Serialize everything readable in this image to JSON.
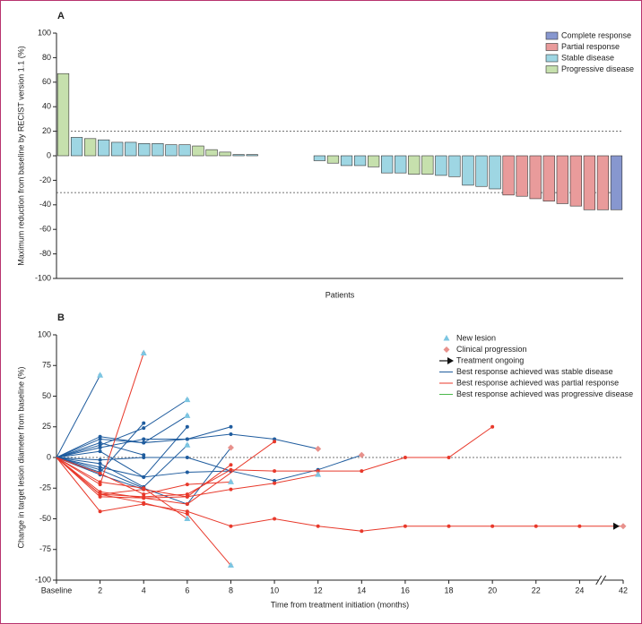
{
  "chart_data": [
    {
      "type": "bar",
      "label": "A",
      "ylabel": "Maximum reduction from baseline by RECIST version 1.1 (%)",
      "xlabel": "Patients",
      "ylim": [
        -100,
        100
      ],
      "yticks": [
        -100,
        -80,
        -60,
        -40,
        -20,
        0,
        20,
        40,
        60,
        80,
        100
      ],
      "reference_lines": [
        20,
        -30
      ],
      "legend": "upper right",
      "series": [
        {
          "name": "Complete response",
          "color": "#8797cf",
          "values": [
            null,
            null,
            null,
            null,
            null,
            null,
            null,
            null,
            null,
            null,
            null,
            null,
            null,
            null,
            null,
            null,
            null,
            null,
            null,
            null,
            null,
            null,
            null,
            null,
            null,
            null,
            null,
            null,
            null,
            null,
            null,
            null,
            null,
            null,
            null,
            null,
            null,
            null,
            null,
            null,
            null,
            -44
          ]
        },
        {
          "name": "Partial response",
          "color": "#e99b9b",
          "values": [
            null,
            null,
            null,
            null,
            null,
            null,
            null,
            null,
            null,
            null,
            null,
            null,
            null,
            null,
            null,
            null,
            null,
            null,
            null,
            null,
            null,
            null,
            null,
            null,
            null,
            null,
            null,
            null,
            null,
            null,
            null,
            null,
            null,
            -32,
            -33,
            -35,
            -37,
            -39,
            -41,
            -44,
            -44,
            null
          ]
        },
        {
          "name": "Stable disease",
          "color": "#9ed6e3",
          "values": [
            null,
            15,
            null,
            13,
            11,
            11,
            10,
            10,
            9,
            9,
            null,
            null,
            null,
            1,
            1,
            0,
            0,
            0,
            0,
            -4,
            null,
            -8,
            -8,
            null,
            -14,
            -14,
            null,
            null,
            -16,
            -17,
            -24,
            -25,
            -27,
            null,
            null,
            null,
            null,
            null,
            null,
            null,
            null,
            null
          ]
        },
        {
          "name": "Progressive disease",
          "color": "#c6e0ad",
          "values": [
            67,
            null,
            14,
            null,
            null,
            null,
            null,
            null,
            null,
            null,
            8,
            5,
            3,
            null,
            null,
            null,
            null,
            null,
            null,
            null,
            -6,
            null,
            null,
            -9,
            null,
            null,
            -15,
            -15,
            null,
            null,
            null,
            null,
            null,
            null,
            null,
            null,
            null,
            null,
            null,
            null,
            null,
            null
          ]
        }
      ]
    },
    {
      "type": "line",
      "label": "B",
      "ylabel": "Change in target lesion diameter from baseline (%)",
      "xlabel": "Time from treatment initiation (months)",
      "xlim": [
        0,
        42
      ],
      "xbreak": [
        25,
        41
      ],
      "xticks": [
        {
          "value": 0,
          "label": "Baseline"
        },
        2,
        4,
        6,
        8,
        10,
        12,
        14,
        16,
        18,
        20,
        22,
        24,
        42
      ],
      "ylim": [
        -100,
        100
      ],
      "yticks": [
        -100,
        -75,
        -50,
        -25,
        0,
        25,
        50,
        75,
        100
      ],
      "reference_lines": [
        0
      ],
      "legend": "upper right",
      "markers": [
        {
          "name": "New lesion",
          "shape": "triangle",
          "color": "#7cc6e2",
          "x": [
            2,
            4,
            6,
            6,
            6,
            6,
            8,
            8,
            12
          ],
          "y": [
            67,
            85,
            47,
            34,
            10,
            -50,
            -20,
            -88,
            -14
          ]
        },
        {
          "name": "Clinical progression",
          "shape": "diamond",
          "color": "#e8918c",
          "x": [
            8,
            12,
            14,
            42
          ],
          "y": [
            8,
            7,
            2,
            -56
          ]
        },
        {
          "name": "Treatment ongoing",
          "shape": "arrow",
          "color": "#111111",
          "x": [
            42
          ],
          "y": [
            -56
          ]
        }
      ],
      "series": [
        {
          "name": "Best response achieved was stable disease",
          "color": "#1f5c9e",
          "lines": [
            {
              "x": [
                0,
                2
              ],
              "values": [
                0,
                67
              ]
            },
            {
              "x": [
                0,
                2,
                4
              ],
              "values": [
                0,
                -12,
                28
              ]
            },
            {
              "x": [
                0,
                2,
                4,
                6
              ],
              "values": [
                0,
                15,
                12,
                34
              ]
            },
            {
              "x": [
                0,
                2,
                4,
                6
              ],
              "values": [
                0,
                10,
                24,
                47
              ]
            },
            {
              "x": [
                0,
                2,
                4,
                6,
                8
              ],
              "values": [
                0,
                8,
                15,
                15,
                25
              ]
            },
            {
              "x": [
                0,
                2,
                4,
                6,
                8,
                10,
                12
              ],
              "values": [
                0,
                17,
                12,
                15,
                19,
                15,
                7
              ]
            },
            {
              "x": [
                0,
                2,
                4,
                6,
                8,
                10,
                12,
                14
              ],
              "values": [
                0,
                -2,
                0,
                0,
                -11,
                -19,
                -10,
                2
              ]
            },
            {
              "x": [
                0,
                2,
                4,
                6
              ],
              "values": [
                0,
                5,
                -16,
                25
              ]
            },
            {
              "x": [
                0,
                2,
                4,
                6
              ],
              "values": [
                0,
                -5,
                -24,
                10
              ]
            },
            {
              "x": [
                0,
                2,
                4
              ],
              "values": [
                0,
                -14,
                -26
              ]
            },
            {
              "x": [
                0,
                2,
                4
              ],
              "values": [
                0,
                12,
                2
              ]
            },
            {
              "x": [
                0,
                2,
                4,
                6,
                8
              ],
              "values": [
                0,
                -8,
                -16,
                -12,
                -11
              ]
            },
            {
              "x": [
                0,
                2,
                4,
                6,
                8
              ],
              "values": [
                0,
                -10,
                -25,
                -38,
                8
              ]
            }
          ]
        },
        {
          "name": "Best response achieved was partial response",
          "color": "#e8392b",
          "lines": [
            {
              "x": [
                0,
                2,
                4
              ],
              "values": [
                0,
                -22,
                85
              ]
            },
            {
              "x": [
                0,
                2,
                4,
                6,
                8,
                10,
                12
              ],
              "values": [
                0,
                -30,
                -26,
                -32,
                -26,
                -21,
                -14
              ]
            },
            {
              "x": [
                0,
                2,
                4,
                6,
                8,
                10,
                12,
                14,
                16,
                18,
                20,
                22,
                24,
                42
              ],
              "values": [
                0,
                -44,
                -38,
                -44,
                -56,
                -50,
                -56,
                -60,
                -56,
                -56,
                -56,
                -56,
                -56,
                -56
              ]
            },
            {
              "x": [
                0,
                2,
                4,
                6,
                8,
                10,
                12,
                14,
                16,
                18,
                20
              ],
              "values": [
                0,
                -30,
                -32,
                -30,
                -10,
                -11,
                -11,
                -11,
                0,
                0,
                25
              ]
            },
            {
              "x": [
                0,
                2,
                4,
                6,
                10
              ],
              "values": [
                0,
                -32,
                -33,
                -38,
                13
              ]
            },
            {
              "x": [
                0,
                2,
                4,
                6,
                8
              ],
              "values": [
                0,
                -13,
                -30,
                -22,
                -20
              ]
            },
            {
              "x": [
                0,
                2,
                4,
                6,
                8
              ],
              "values": [
                0,
                -30,
                -37,
                -46,
                -88
              ]
            },
            {
              "x": [
                0,
                2,
                4,
                6
              ],
              "values": [
                0,
                -20,
                -25,
                -50
              ]
            },
            {
              "x": [
                0,
                2,
                4,
                6,
                8
              ],
              "values": [
                0,
                -28,
                -33,
                -32,
                -6
              ]
            }
          ]
        },
        {
          "name": "Best response achieved was progressive disease",
          "color": "#4cb84c",
          "lines": []
        }
      ]
    }
  ]
}
